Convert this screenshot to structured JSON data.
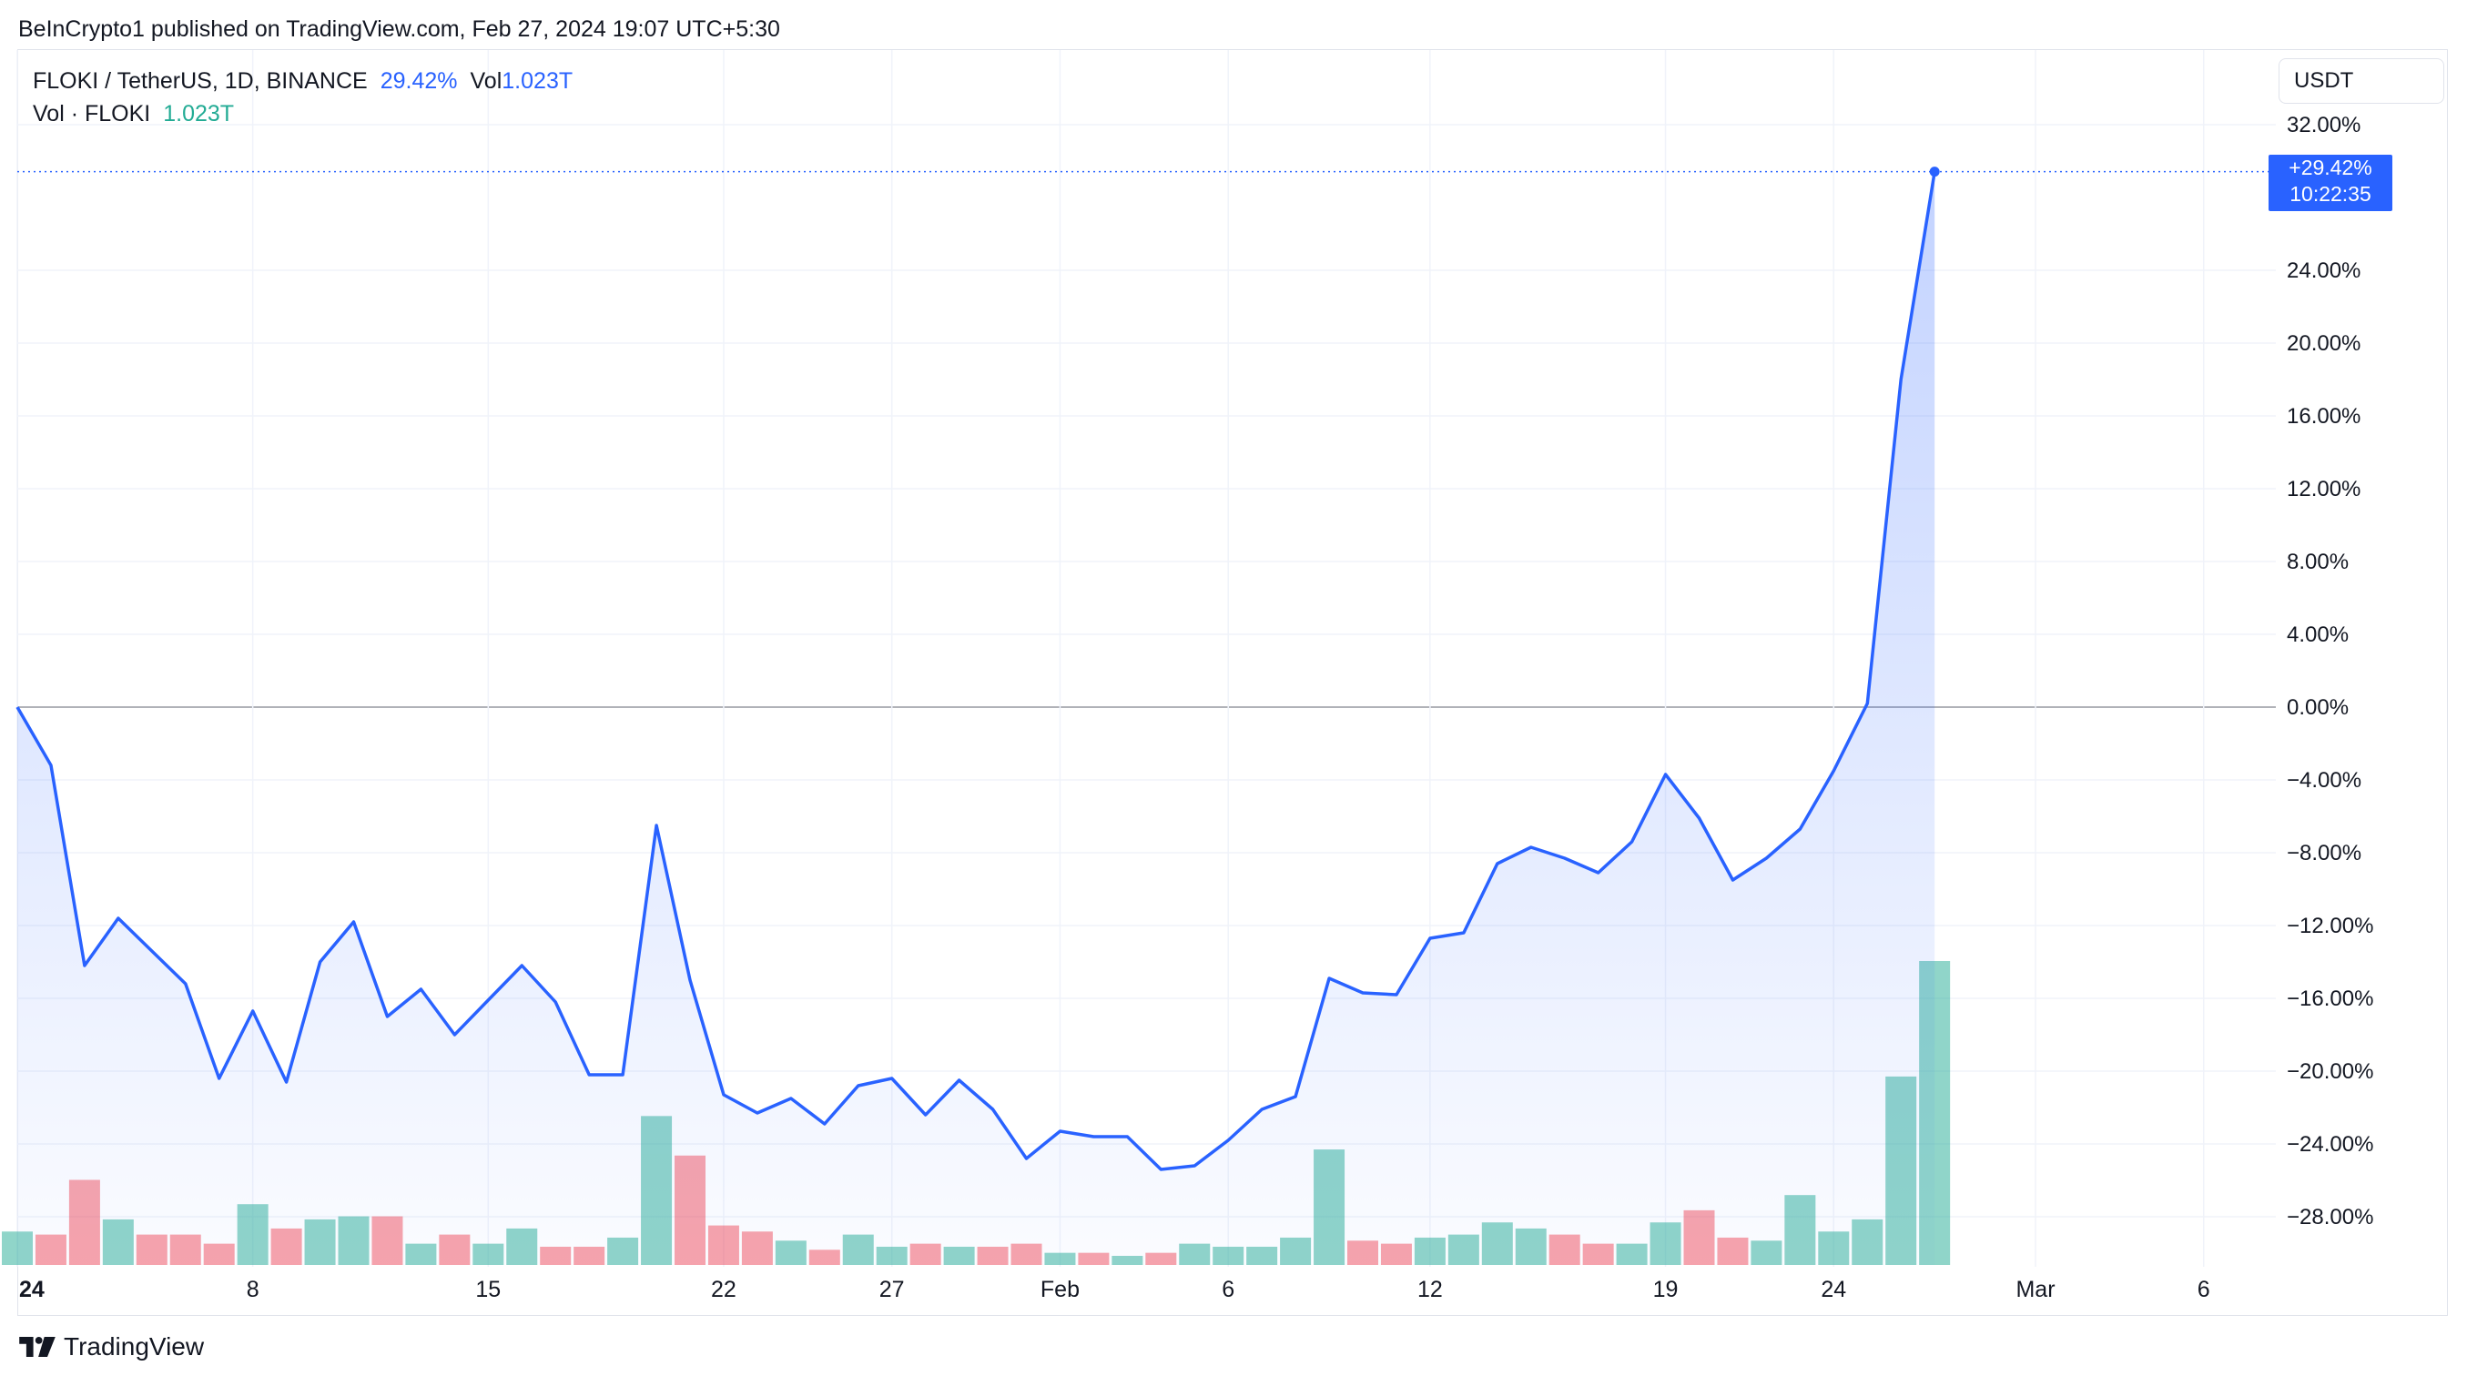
{
  "header": {
    "publish_line": "BeInCrypto1 published on TradingView.com, Feb 27, 2024 19:07 UTC+5:30"
  },
  "legend": {
    "symbol": "FLOKI / TetherUS, 1D, BINANCE",
    "change": "29.42%",
    "vol_label": "Vol",
    "vol_value": "1.023T",
    "vol_series_label": "Vol · FLOKI",
    "vol_series_value": "1.023T"
  },
  "currency_button": {
    "label": "USDT"
  },
  "last_value_badge": {
    "change": "+29.42%",
    "countdown": "10:22:35"
  },
  "footer": {
    "brand": "TradingView"
  },
  "colors": {
    "line": "#2962ff",
    "area": "#2962ff",
    "vol_up": "#22ab94",
    "vol_down": "#f23645",
    "grid": "#f0f3fa",
    "zero_line": "#9598a1",
    "text": "#131722"
  },
  "chart_data": {
    "type": "line",
    "title": "FLOKI / TetherUS, 1D, BINANCE",
    "ylabel": "",
    "xlabel": "",
    "ylim": [
      -31.5,
      33.5
    ],
    "y_ticks": [
      32,
      24,
      20,
      16,
      12,
      8,
      4,
      0,
      -4,
      -8,
      -12,
      -16,
      -20,
      -24,
      -28
    ],
    "y_tick_labels": [
      "32.00%",
      "24.00%",
      "20.00%",
      "16.00%",
      "12.00%",
      "8.00%",
      "4.00%",
      "0.00%",
      "−4.00%",
      "−8.00%",
      "−12.00%",
      "−16.00%",
      "−20.00%",
      "−24.00%",
      "−28.00%"
    ],
    "x_ticks": [
      {
        "index": 0,
        "label": "24",
        "bold": true
      },
      {
        "index": 7,
        "label": "8"
      },
      {
        "index": 14,
        "label": "15"
      },
      {
        "index": 21,
        "label": "22"
      },
      {
        "index": 26,
        "label": "27"
      },
      {
        "index": 31,
        "label": "Feb"
      },
      {
        "index": 36,
        "label": "6"
      },
      {
        "index": 42,
        "label": "12"
      },
      {
        "index": 49,
        "label": "19"
      },
      {
        "index": 54,
        "label": "24"
      },
      {
        "index": 60,
        "label": "Mar"
      },
      {
        "index": 65,
        "label": "6"
      }
    ],
    "x_index_max": 68.8,
    "series": [
      {
        "name": "FLOKI / TetherUS",
        "values": [
          0,
          -3.2,
          -14.2,
          -11.6,
          -13.4,
          -15.2,
          -20.4,
          -16.7,
          -20.6,
          -14,
          -11.8,
          -17,
          -15.5,
          -18,
          -16.1,
          -14.2,
          -16.2,
          -20.2,
          -20.2,
          -6.5,
          -15,
          -21.3,
          -22.3,
          -21.5,
          -22.9,
          -20.8,
          -20.4,
          -22.4,
          -20.5,
          -22.1,
          -24.8,
          -23.3,
          -23.6,
          -23.6,
          -25.4,
          -25.2,
          -23.8,
          -22.1,
          -21.4,
          -14.9,
          -15.7,
          -15.8,
          -12.7,
          -12.4,
          -8.6,
          -7.7,
          -8.3,
          -9.1,
          -7.4,
          -3.7,
          -6.1,
          -9.5,
          -8.3,
          -6.7,
          -3.5,
          0.2,
          18,
          29.42
        ]
      }
    ],
    "volume": {
      "name": "Vol · FLOKI",
      "last": "1.023T",
      "relative": [
        0.11,
        0.1,
        0.28,
        0.15,
        0.1,
        0.1,
        0.07,
        0.2,
        0.12,
        0.15,
        0.16,
        0.16,
        0.07,
        0.1,
        0.07,
        0.12,
        0.06,
        0.06,
        0.09,
        0.49,
        0.36,
        0.13,
        0.11,
        0.08,
        0.05,
        0.1,
        0.06,
        0.07,
        0.06,
        0.06,
        0.07,
        0.04,
        0.04,
        0.03,
        0.04,
        0.07,
        0.06,
        0.06,
        0.09,
        0.38,
        0.08,
        0.07,
        0.09,
        0.1,
        0.14,
        0.12,
        0.1,
        0.07,
        0.07,
        0.14,
        0.18,
        0.09,
        0.08,
        0.23,
        0.11,
        0.15,
        0.62,
        1.0
      ],
      "direction": [
        "up",
        "down",
        "down",
        "up",
        "down",
        "down",
        "down",
        "up",
        "down",
        "up",
        "up",
        "down",
        "up",
        "down",
        "up",
        "up",
        "down",
        "down",
        "up",
        "up",
        "down",
        "down",
        "down",
        "up",
        "down",
        "up",
        "up",
        "down",
        "up",
        "down",
        "down",
        "up",
        "down",
        "up",
        "down",
        "up",
        "up",
        "up",
        "up",
        "up",
        "down",
        "down",
        "up",
        "up",
        "up",
        "up",
        "down",
        "down",
        "up",
        "up",
        "down",
        "down",
        "up",
        "up",
        "up",
        "up",
        "up",
        "up"
      ]
    }
  }
}
